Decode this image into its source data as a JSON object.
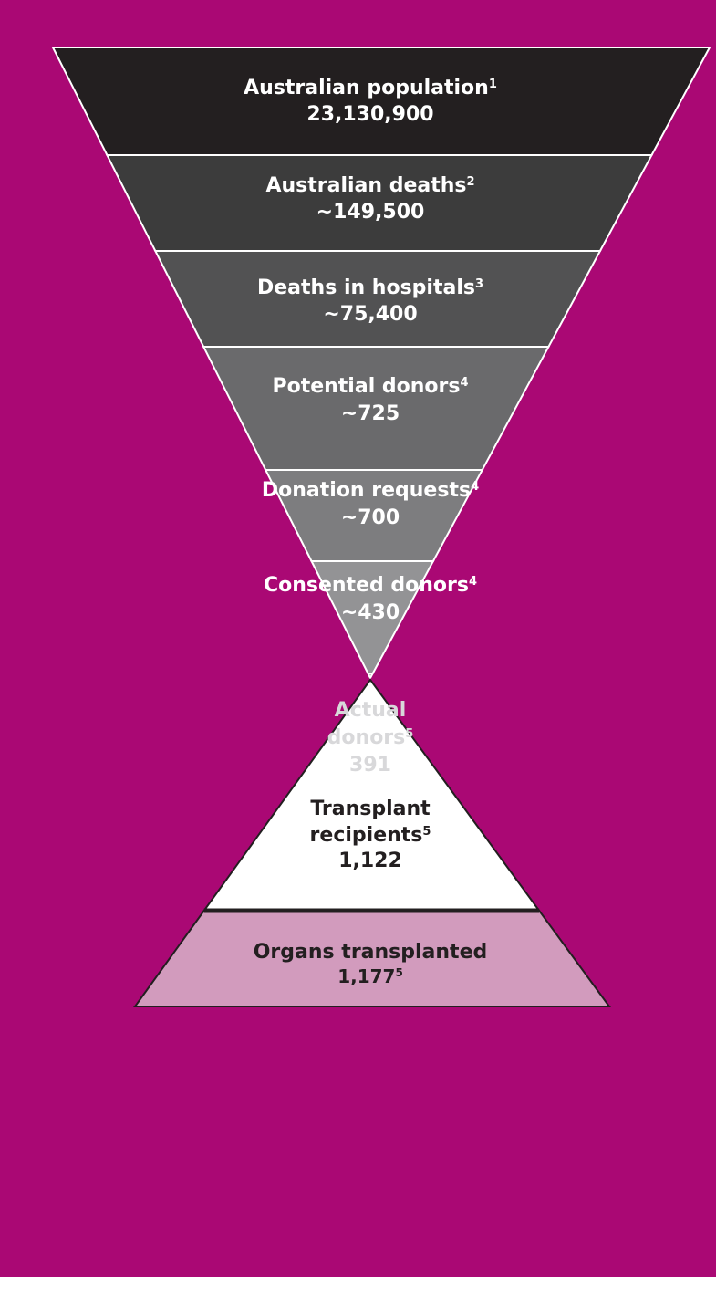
{
  "colors": {
    "background": "#aa0874",
    "divider": "#ffffff",
    "outline": "#231f20",
    "tier_fills": [
      "#231f20",
      "#3c3c3c",
      "#525253",
      "#6a6a6c",
      "#7d7d7f",
      "#939395",
      "#a6a6a8"
    ],
    "tier_text": [
      "#ffffff",
      "#ffffff",
      "#ffffff",
      "#ffffff",
      "#ffffff",
      "#ffffff",
      "#d8d8da"
    ],
    "recipients_fill": "#ffffff",
    "recipients_text": "#231f20",
    "organs_fill": "#d29bbd",
    "organs_text": "#231f20"
  },
  "funnel": [
    {
      "label": "Australian population",
      "sup": "1",
      "value": "23,130,900"
    },
    {
      "label": "Australian deaths",
      "sup": "2",
      "value": "~149,500"
    },
    {
      "label": "Deaths in hospitals",
      "sup": "3",
      "value": "~75,400"
    },
    {
      "label": "Potential donors",
      "sup": "4",
      "value": "~725"
    },
    {
      "label": "Donation requests",
      "sup": "4",
      "value": "~700"
    },
    {
      "label": "Consented donors",
      "sup": "4",
      "value": "~430"
    },
    {
      "label_lines": [
        "Actual",
        "donors"
      ],
      "sup": "5",
      "value": "391"
    }
  ],
  "recipients": {
    "label_lines": [
      "Transplant",
      "recipients"
    ],
    "sup": "5",
    "value": "1,122"
  },
  "organs": {
    "label": "Organs transplanted",
    "value": "1,177",
    "sup": "5"
  }
}
